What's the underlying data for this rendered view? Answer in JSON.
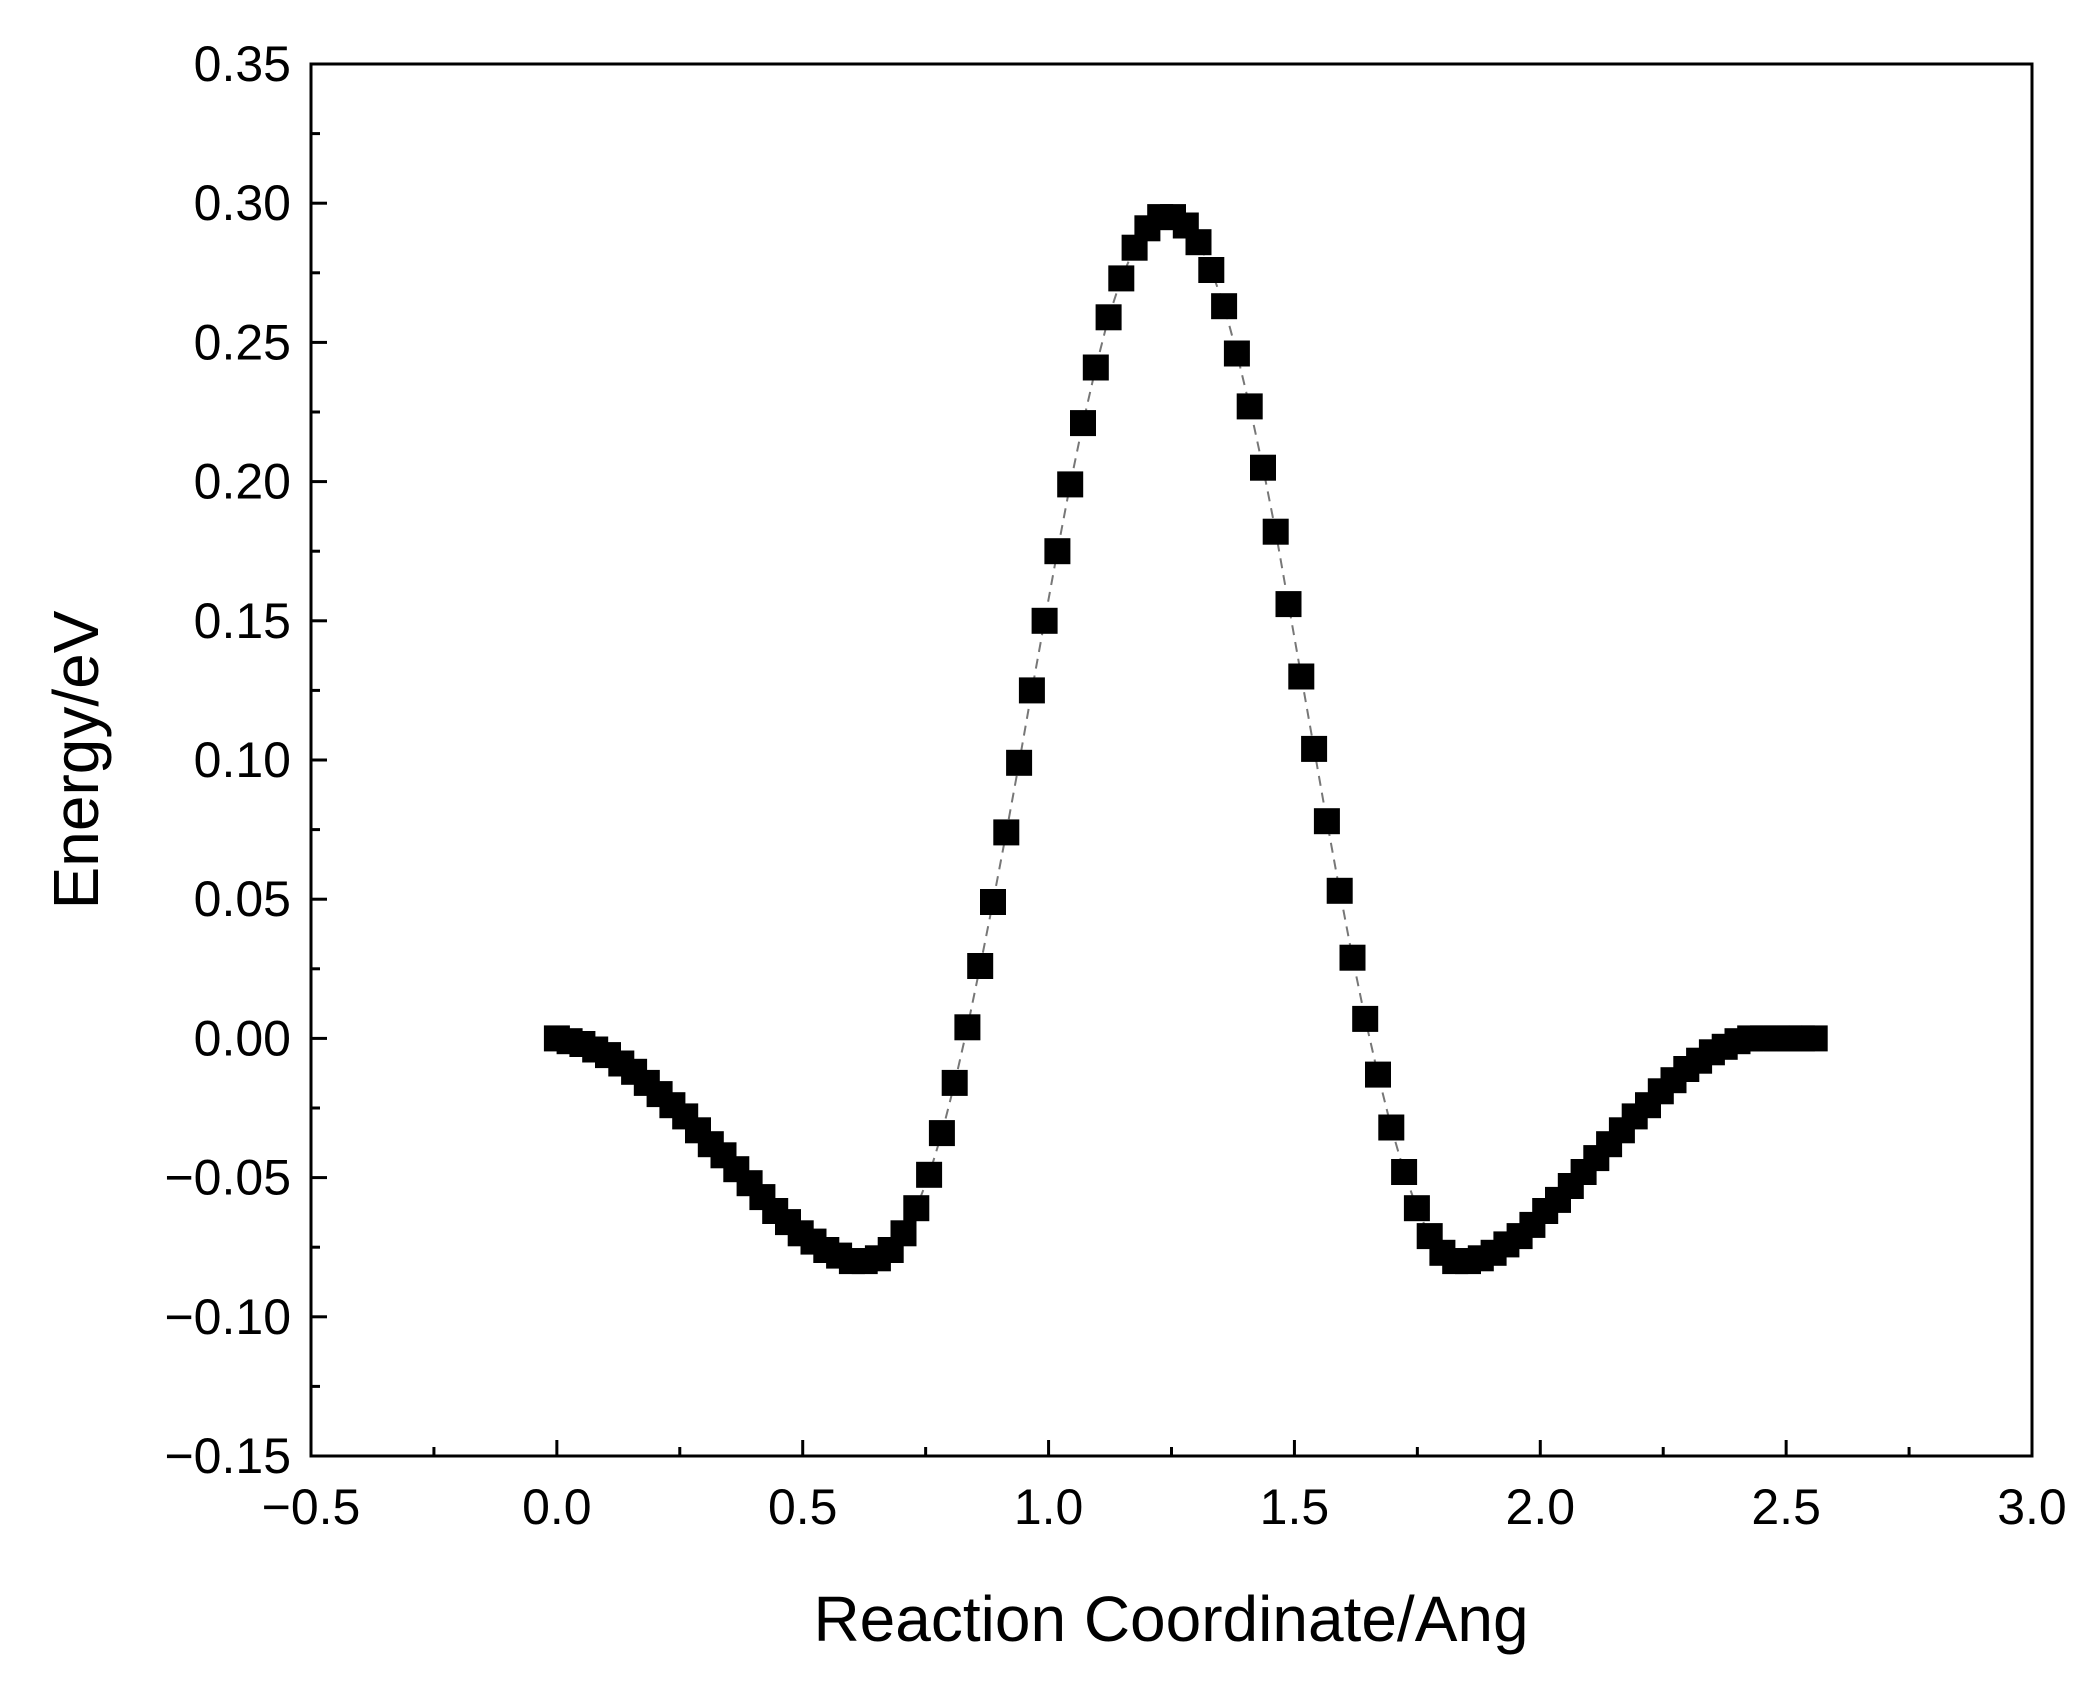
{
  "chart_data": {
    "type": "scatter",
    "title": "",
    "xlabel": "Reaction Coordinate/Ang",
    "ylabel": "Energy/eV",
    "xlim": [
      -0.5,
      3.0
    ],
    "ylim": [
      -0.15,
      0.35
    ],
    "x_ticks": [
      "−0.5",
      "0.0",
      "0.5",
      "1.0",
      "1.5",
      "2.0",
      "2.5",
      "3.0"
    ],
    "y_ticks": [
      "−0.15",
      "−0.10",
      "−0.05",
      "0.00",
      "0.05",
      "0.10",
      "0.15",
      "0.20",
      "0.25",
      "0.30",
      "0.35"
    ],
    "grid": false,
    "legend": "none",
    "marker": "filled-square",
    "marker_color": "#000000",
    "line_style": "dashed",
    "line_color": "#777777",
    "series": [
      {
        "x": [
          0.0,
          0.026,
          0.052,
          0.078,
          0.104,
          0.131,
          0.157,
          0.183,
          0.209,
          0.235,
          0.261,
          0.287,
          0.313,
          0.339,
          0.365,
          0.392,
          0.418,
          0.444,
          0.47,
          0.496,
          0.522,
          0.548,
          0.574,
          0.6,
          0.626,
          0.653,
          0.679,
          0.705,
          0.731,
          0.757,
          0.783,
          0.809,
          0.835,
          0.861,
          0.887,
          0.914,
          0.94,
          0.966,
          0.992,
          1.018,
          1.044,
          1.07,
          1.096,
          1.122,
          1.148,
          1.175,
          1.201,
          1.227,
          1.253,
          1.279,
          1.305,
          1.331,
          1.357,
          1.383,
          1.409,
          1.436,
          1.462,
          1.488,
          1.514,
          1.54,
          1.566,
          1.592,
          1.618,
          1.644,
          1.67,
          1.697,
          1.723,
          1.749,
          1.775,
          1.801,
          1.827,
          1.853,
          1.879,
          1.905,
          1.931,
          1.958,
          1.984,
          2.01,
          2.036,
          2.062,
          2.088,
          2.114,
          2.14,
          2.166,
          2.192,
          2.219,
          2.245,
          2.271,
          2.297,
          2.323,
          2.349,
          2.375,
          2.401,
          2.427,
          2.453,
          2.48,
          2.506,
          2.532,
          2.558
        ],
        "y": [
          0.0,
          -0.001,
          -0.002,
          -0.004,
          -0.006,
          -0.009,
          -0.012,
          -0.016,
          -0.02,
          -0.024,
          -0.028,
          -0.033,
          -0.038,
          -0.042,
          -0.047,
          -0.052,
          -0.057,
          -0.062,
          -0.066,
          -0.07,
          -0.073,
          -0.076,
          -0.078,
          -0.08,
          -0.08,
          -0.079,
          -0.076,
          -0.07,
          -0.061,
          -0.049,
          -0.034,
          -0.016,
          0.004,
          0.026,
          0.049,
          0.074,
          0.099,
          0.125,
          0.15,
          0.175,
          0.199,
          0.221,
          0.241,
          0.259,
          0.273,
          0.284,
          0.291,
          0.295,
          0.295,
          0.292,
          0.286,
          0.276,
          0.263,
          0.246,
          0.227,
          0.205,
          0.182,
          0.156,
          0.13,
          0.104,
          0.078,
          0.053,
          0.029,
          0.007,
          -0.013,
          -0.032,
          -0.048,
          -0.061,
          -0.071,
          -0.077,
          -0.08,
          -0.08,
          -0.079,
          -0.077,
          -0.074,
          -0.071,
          -0.067,
          -0.062,
          -0.058,
          -0.053,
          -0.048,
          -0.043,
          -0.038,
          -0.033,
          -0.028,
          -0.024,
          -0.019,
          -0.015,
          -0.011,
          -0.008,
          -0.005,
          -0.003,
          -0.001,
          0.0,
          0.0,
          0.0,
          0.0,
          0.0,
          0.0
        ]
      }
    ]
  }
}
